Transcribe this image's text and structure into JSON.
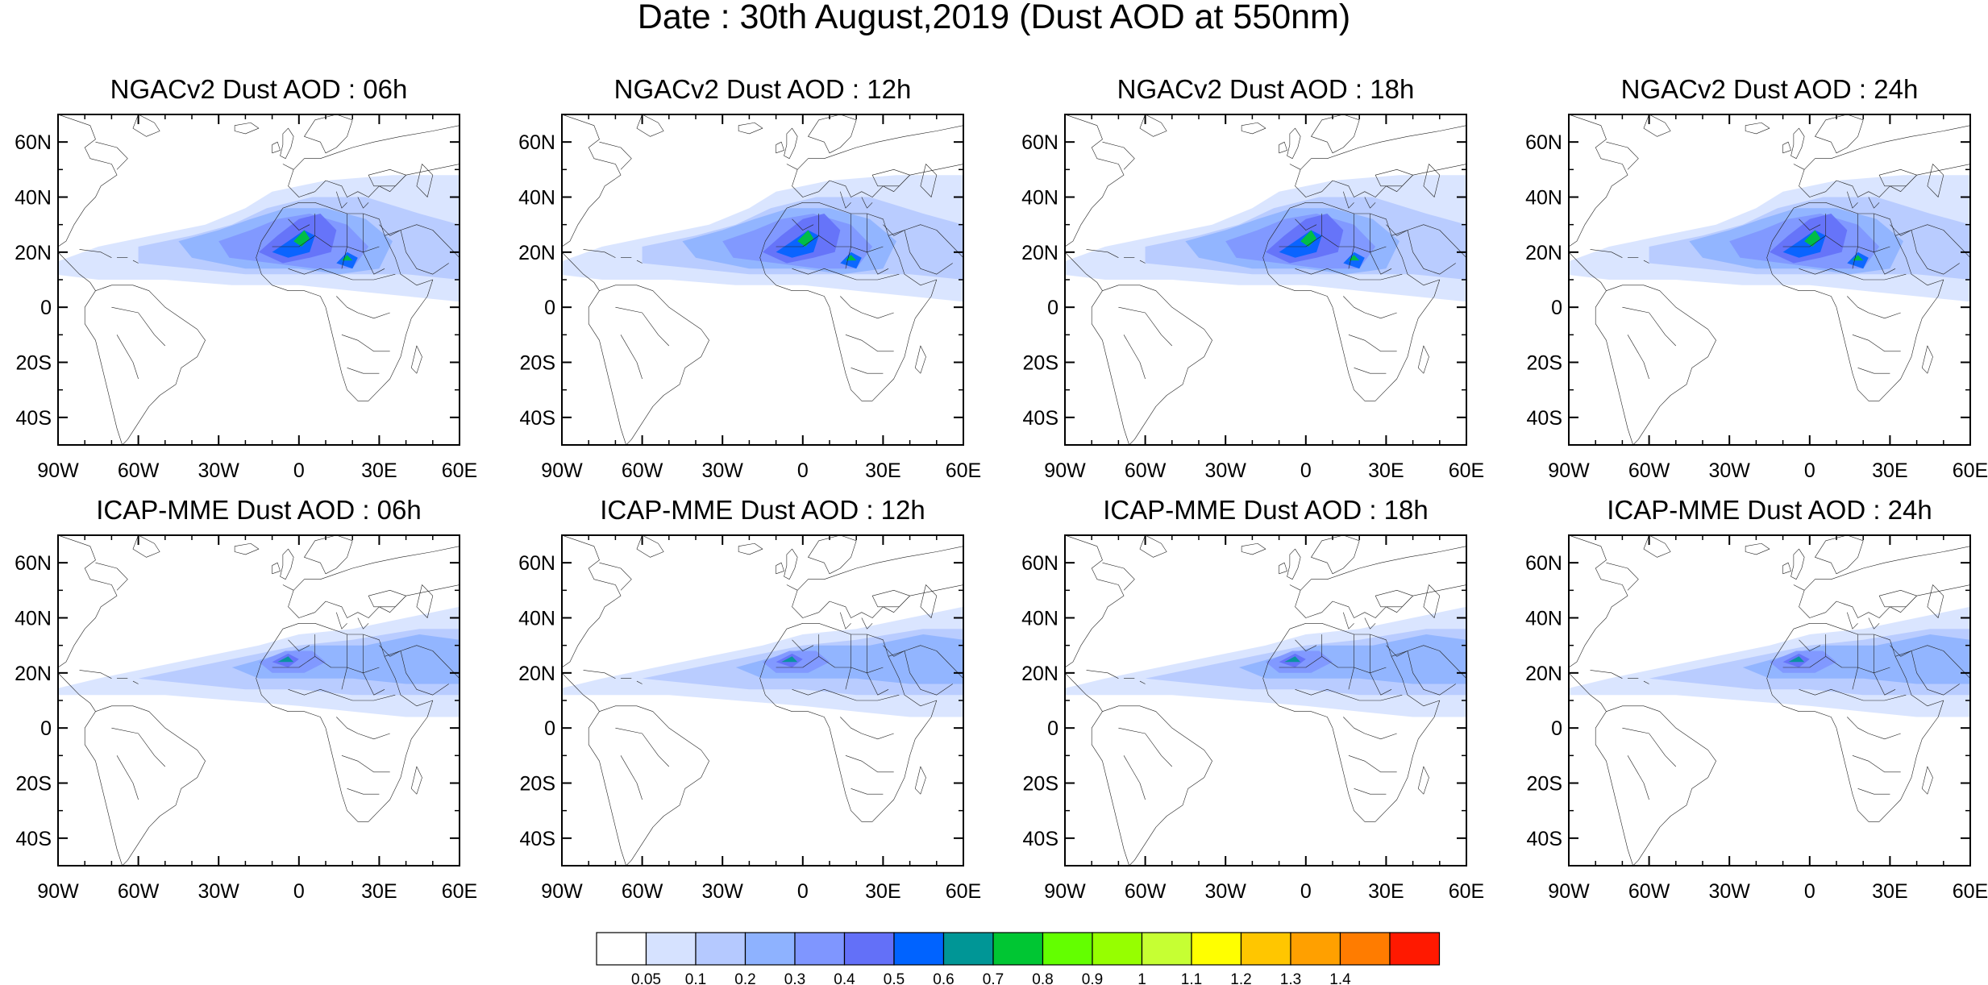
{
  "title": "Date : 30th August,2019 (Dust AOD at 550nm)",
  "panels": [
    {
      "title": "NGACv2 Dust AOD : 06h"
    },
    {
      "title": "NGACv2 Dust AOD : 12h"
    },
    {
      "title": "NGACv2 Dust AOD : 18h"
    },
    {
      "title": "NGACv2 Dust AOD : 24h"
    },
    {
      "title": "ICAP-MME Dust AOD : 06h"
    },
    {
      "title": "ICAP-MME Dust AOD : 12h"
    },
    {
      "title": "ICAP-MME Dust AOD : 18h"
    },
    {
      "title": "ICAP-MME Dust AOD : 24h"
    }
  ],
  "lat_labels": [
    "60N",
    "40N",
    "20N",
    "0",
    "20S",
    "40S"
  ],
  "lon_labels": [
    "90W",
    "60W",
    "30W",
    "0",
    "30E",
    "60E"
  ],
  "colorbar": {
    "labels": [
      "0.05",
      "0.1",
      "0.2",
      "0.3",
      "0.4",
      "0.5",
      "0.6",
      "0.7",
      "0.8",
      "0.9",
      "1",
      "1.1",
      "1.2",
      "1.3",
      "1.4"
    ],
    "colors": [
      "#ffffff",
      "#d6e2ff",
      "#b5c9ff",
      "#8eb2ff",
      "#7f96ff",
      "#6370f8",
      "#0063ff",
      "#009696",
      "#00c633",
      "#63ff00",
      "#96ff00",
      "#c6ff33",
      "#ffff00",
      "#ffc600",
      "#ffa000",
      "#ff7c00",
      "#ff1900"
    ]
  }
}
